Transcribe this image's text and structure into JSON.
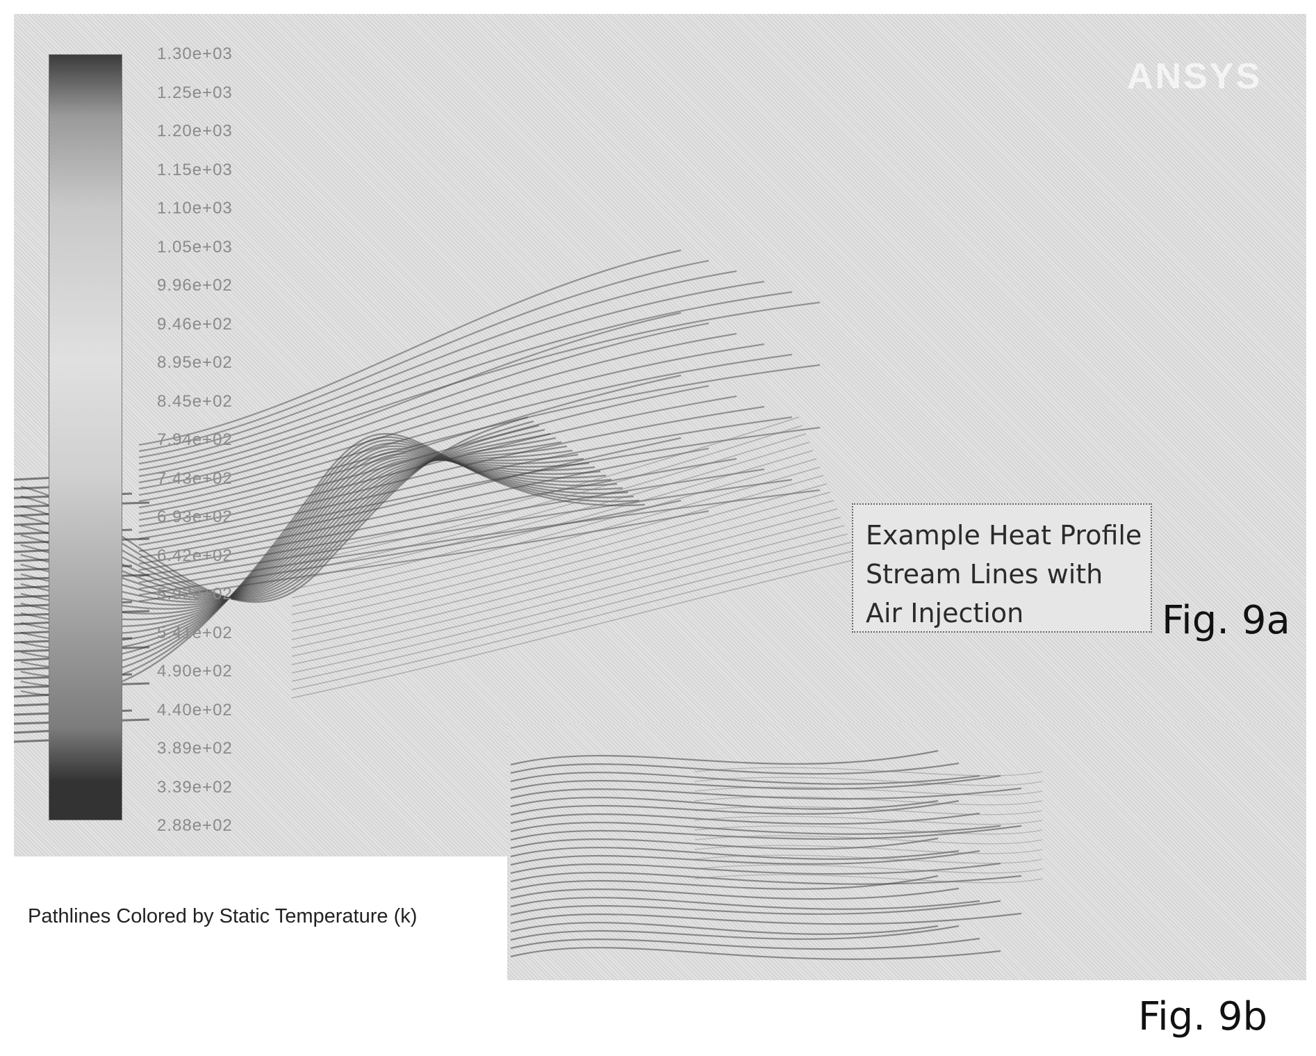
{
  "legend": {
    "labels": [
      "1.30e+03",
      "1.25e+03",
      "1.20e+03",
      "1.15e+03",
      "1.10e+03",
      "1.05e+03",
      "9.96e+02",
      "9.46e+02",
      "8.95e+02",
      "8.45e+02",
      "7.94e+02",
      "7.43e+02",
      "6.93e+02",
      "6.42e+02",
      "5.92e+02",
      "5.41e+02",
      "4.90e+02",
      "4.40e+02",
      "3.89e+02",
      "3.39e+02",
      "2.88e+02"
    ]
  },
  "brand": "ANSYS",
  "caption": "Pathlines Colored by Static Temperature (k)",
  "annotation": {
    "lines": [
      "Example Heat Profile",
      "Stream Lines with",
      "Air Injection"
    ]
  },
  "figures": {
    "fig_a": "Fig. 9a",
    "fig_b": "Fig. 9b"
  }
}
